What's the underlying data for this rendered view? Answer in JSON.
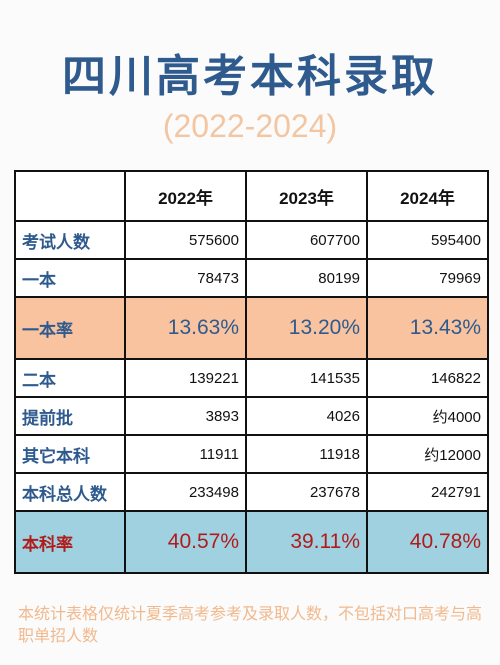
{
  "title": "四川高考本科录取",
  "subtitle": "(2022-2024)",
  "table": {
    "headers": [
      "",
      "2022年",
      "2023年",
      "2024年"
    ],
    "rows": [
      {
        "label": "考试人数",
        "values": [
          "575600",
          "607700",
          "595400"
        ]
      },
      {
        "label": "一本",
        "values": [
          "78473",
          "80199",
          "79969"
        ]
      },
      {
        "label": "一本率",
        "values": [
          "13.63%",
          "13.20%",
          "13.43%"
        ]
      },
      {
        "label": "二本",
        "values": [
          "139221",
          "141535",
          "146822"
        ]
      },
      {
        "label": "提前批",
        "values": [
          "3893",
          "4026",
          "约4000"
        ]
      },
      {
        "label": "其它本科",
        "values": [
          "11911",
          "11918",
          "约12000"
        ]
      },
      {
        "label": "本科总人数",
        "values": [
          "233498",
          "237678",
          "242791"
        ]
      },
      {
        "label": "本科率",
        "values": [
          "40.57%",
          "39.11%",
          "40.78%"
        ]
      }
    ]
  },
  "note": "本统计表格仅统计夏季高考参考及录取人数，不包括对口高考与高职单招人数",
  "colors": {
    "title": "#2f5a8e",
    "subtitle": "#f3c6a1",
    "rate1_bg": "#f8c39e",
    "rate2_bg": "#9fd1e0",
    "rate2_text": "#b01c1c",
    "note": "#f1b98d"
  }
}
